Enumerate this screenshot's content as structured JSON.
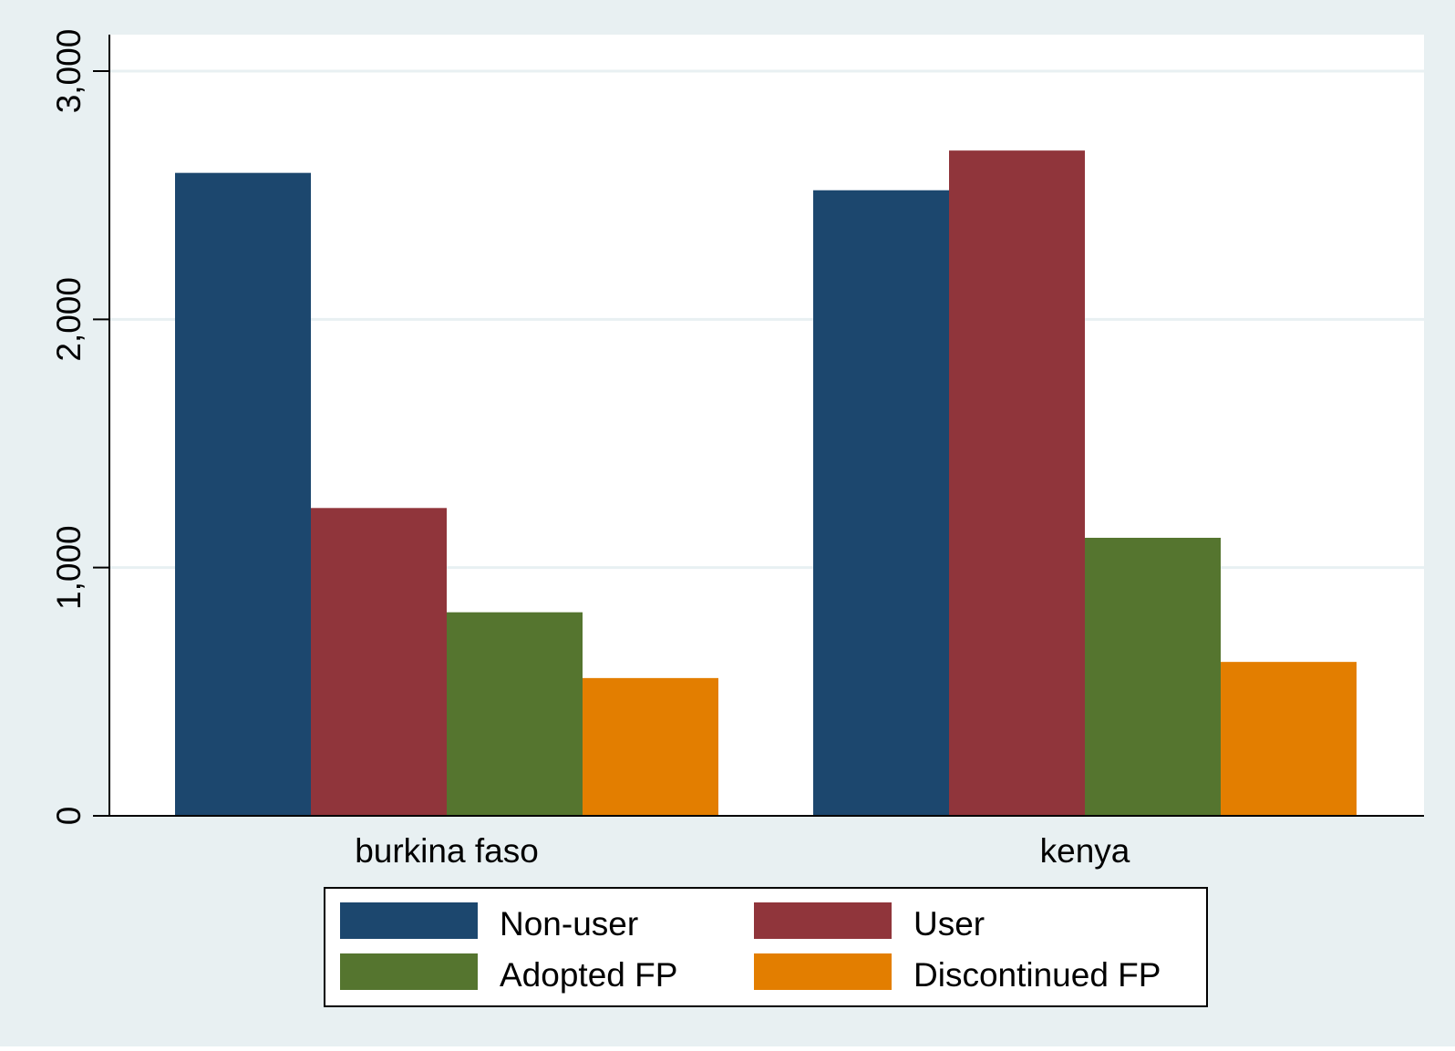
{
  "chart_data": {
    "type": "bar",
    "title": "",
    "xlabel": "",
    "ylabel": "",
    "categories": [
      "burkina faso",
      "kenya"
    ],
    "series": [
      {
        "name": "Non-user",
        "values": [
          2590,
          2520
        ]
      },
      {
        "name": "User",
        "values": [
          1240,
          2680
        ]
      },
      {
        "name": "Adopted FP",
        "values": [
          820,
          1120
        ]
      },
      {
        "name": "Discontinued FP",
        "values": [
          555,
          620
        ]
      }
    ],
    "ylim": [
      0,
      3000
    ],
    "yticks": [
      0,
      1000,
      2000,
      3000
    ],
    "ytick_labels": [
      "0",
      "1,000",
      "2,000",
      "3,000"
    ],
    "grid": true,
    "legend_position": "bottom"
  },
  "colors": {
    "outer_background": "#e8f0f2",
    "plot_background": "#ffffff",
    "gridline": "#e8f0f2",
    "series": [
      "#1c476e",
      "#90353b",
      "#55752f",
      "#e37e00"
    ]
  }
}
